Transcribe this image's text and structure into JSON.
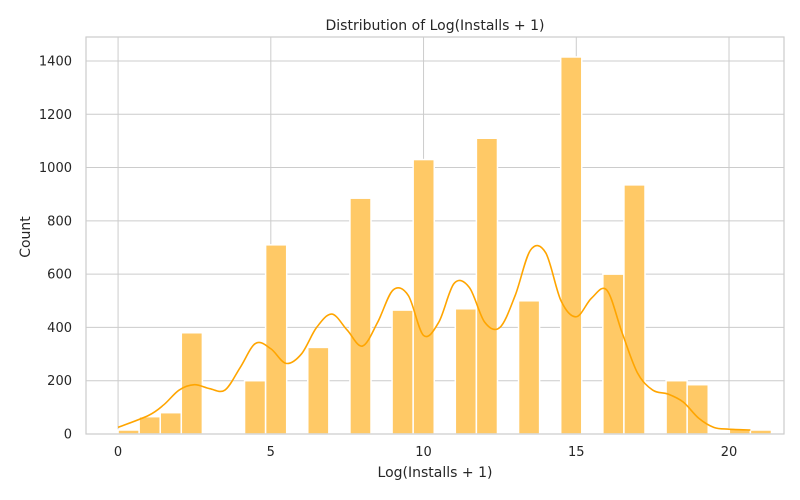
{
  "chart_data": {
    "type": "bar",
    "title": "Distribution of Log(Installs + 1)",
    "xlabel": "Log(Installs + 1)",
    "ylabel": "Count",
    "xlim": [
      -1.05,
      21.8
    ],
    "ylim": [
      0,
      1490
    ],
    "xticks": [
      0,
      5,
      10,
      15,
      20
    ],
    "yticks": [
      0,
      200,
      400,
      600,
      800,
      1000,
      1200,
      1400
    ],
    "grid": true,
    "bar_color": "#ffc966",
    "bar_edge_color": "#ffffff",
    "kde_color": "#ffa500",
    "bin_width": 0.69,
    "x_start": 0,
    "counts": [
      15,
      65,
      80,
      380,
      0,
      0,
      200,
      710,
      0,
      325,
      0,
      885,
      0,
      465,
      1030,
      0,
      470,
      1110,
      0,
      500,
      0,
      1415,
      0,
      600,
      935,
      0,
      200,
      185,
      0,
      20,
      15
    ],
    "kde": {
      "x": [
        0,
        1,
        1.5,
        2,
        2.5,
        3,
        3.5,
        4,
        4.5,
        5,
        5.5,
        6,
        6.5,
        7,
        7.5,
        8,
        8.5,
        9,
        9.5,
        10,
        10.5,
        11,
        11.5,
        12,
        12.5,
        13,
        13.5,
        14,
        14.5,
        15,
        15.5,
        16,
        16.5,
        17,
        17.5,
        18,
        18.5,
        19,
        19.5,
        20,
        20.7
      ],
      "y": [
        25,
        70,
        110,
        165,
        185,
        170,
        165,
        250,
        340,
        320,
        265,
        300,
        400,
        450,
        390,
        330,
        420,
        540,
        520,
        370,
        420,
        565,
        550,
        420,
        400,
        520,
        690,
        680,
        500,
        440,
        510,
        540,
        380,
        230,
        165,
        150,
        120,
        60,
        25,
        18,
        15
      ]
    }
  }
}
